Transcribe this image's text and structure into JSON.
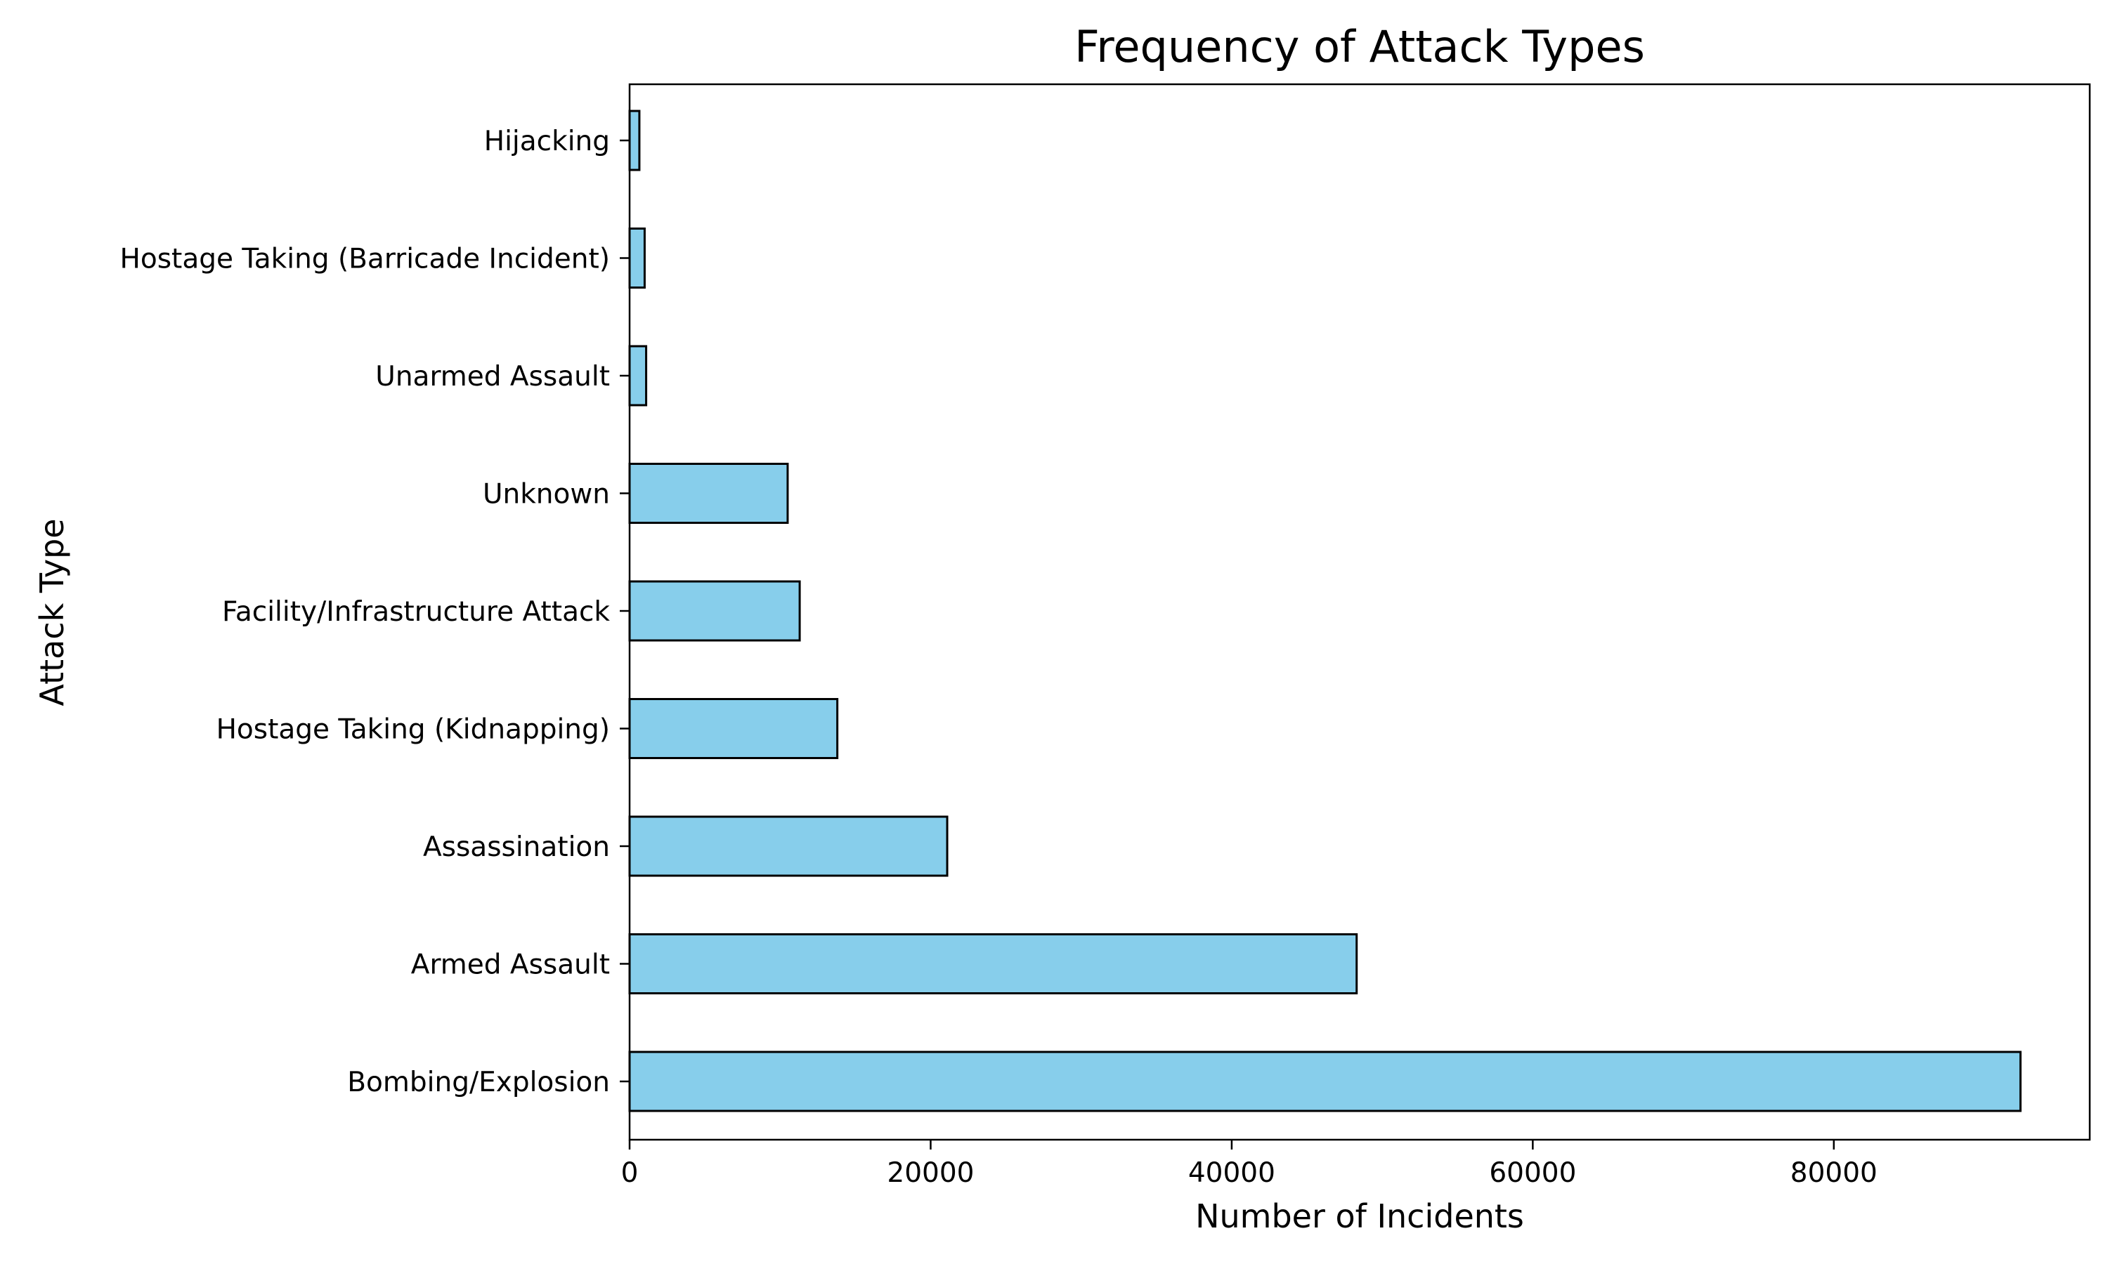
{
  "chart_data": {
    "type": "bar",
    "orientation": "horizontal",
    "title": "Frequency of Attack Types",
    "xlabel": "Number of Incidents",
    "ylabel": "Attack Type",
    "categories": [
      "Bombing/Explosion",
      "Armed Assault",
      "Assassination",
      "Hostage Taking (Kidnapping)",
      "Facility/Infrastructure Attack",
      "Unknown",
      "Unarmed Assault",
      "Hostage Taking (Barricade Incident)",
      "Hijacking"
    ],
    "values": [
      92400,
      48300,
      21100,
      13800,
      11300,
      10500,
      1100,
      1000,
      650
    ],
    "xlim": [
      0,
      97000
    ],
    "xticks": [
      0,
      20000,
      40000,
      60000,
      80000
    ],
    "xtick_labels": [
      "0",
      "20000",
      "40000",
      "60000",
      "80000"
    ],
    "bar_color": "#87ceeb",
    "edge_color": "#000000",
    "grid": false,
    "legend": false
  }
}
